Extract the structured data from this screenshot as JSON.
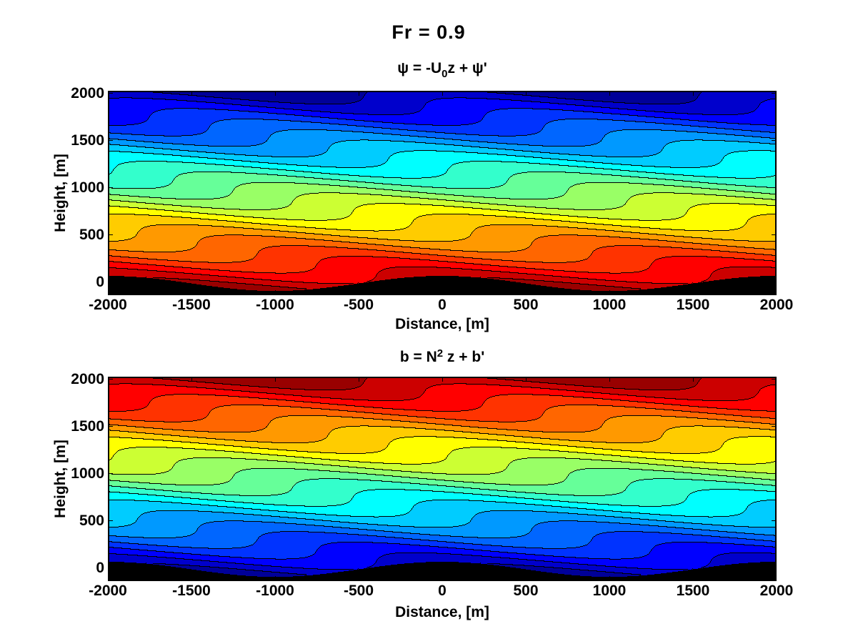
{
  "figure": {
    "title": "Fr = 0.9",
    "background": "#ffffff",
    "frame_color": "#000000",
    "terrain_color": "#000000"
  },
  "subplots": [
    {
      "id": "psi",
      "title_parts": {
        "pre": "ψ = -U",
        "sub": "0",
        "post": "z + ψ'"
      },
      "xlabel": "Distance, [m]",
      "ylabel": "Height, [m]",
      "x_tick_labels": [
        "-2000",
        "-1500",
        "-1000",
        "-500",
        "0",
        "500",
        "1000",
        "1500",
        "2000"
      ],
      "y_tick_labels": [
        "0",
        "500",
        "1000",
        "1500",
        "2000"
      ]
    },
    {
      "id": "b",
      "title_parts": {
        "pre": "b = N",
        "sup": "2",
        "post": " z + b'"
      },
      "xlabel": "Distance, [m]",
      "ylabel": "Height, [m]",
      "x_tick_labels": [
        "-2000",
        "-1500",
        "-1000",
        "-500",
        "0",
        "500",
        "1000",
        "1500",
        "2000"
      ],
      "y_tick_labels": [
        "0",
        "500",
        "1000",
        "1500",
        "2000"
      ]
    }
  ],
  "chart_data": {
    "type": "heatmap",
    "style": "filled-contour-with-lines",
    "title": "Fr = 0.9",
    "froude_number": 0.9,
    "xlabel": "Distance, [m]",
    "ylabel": "Height, [m]",
    "xlim": [
      -2000,
      2000
    ],
    "ylim": [
      -145,
      2025
    ],
    "x_ticks": [
      -2000,
      -1500,
      -1000,
      -500,
      0,
      500,
      1000,
      1500,
      2000
    ],
    "y_ticks": [
      0,
      500,
      1000,
      1500,
      2000
    ],
    "grid": false,
    "legend": "none",
    "field": {
      "description": "mountain-wave field: F(x,z) = z - A*cos(kx + mz - phase); streamfunction psi = -U0*(z - eta), buoyancy b = N^2*(z - eta); contours are level sets of F",
      "x_wavelength_m": 2000,
      "z_wavelength_m": 627,
      "wave_amplitude_m": 90,
      "phase_offset_rad": 0.98,
      "terrain_formula": "h(x) = 80*cos(2*pi*x/2000) - 20",
      "terrain_amplitude_m": 80,
      "terrain_offset_m": -20
    },
    "levels": {
      "min": -160,
      "step": 112,
      "count": 20
    },
    "colormap_name": "jet(20)",
    "palette": [
      "#000099",
      "#0000CC",
      "#0000FF",
      "#0033FF",
      "#0066FF",
      "#0099FF",
      "#00CCFF",
      "#00FFFF",
      "#33FFCC",
      "#66FF99",
      "#99FF66",
      "#CCFF33",
      "#FFFF00",
      "#FFCC00",
      "#FF9900",
      "#FF6600",
      "#FF3300",
      "#FF0000",
      "#CC0000",
      "#990000"
    ],
    "charts": [
      {
        "id": "psi",
        "colors_increase_with_height": false,
        "palette_reversed": true,
        "top_band_color": "#000099",
        "bottom_band_color": "#CC0000"
      },
      {
        "id": "b",
        "colors_increase_with_height": true,
        "palette_reversed": false,
        "top_band_color": "#990000",
        "bottom_band_color": "#0000CC"
      }
    ]
  }
}
